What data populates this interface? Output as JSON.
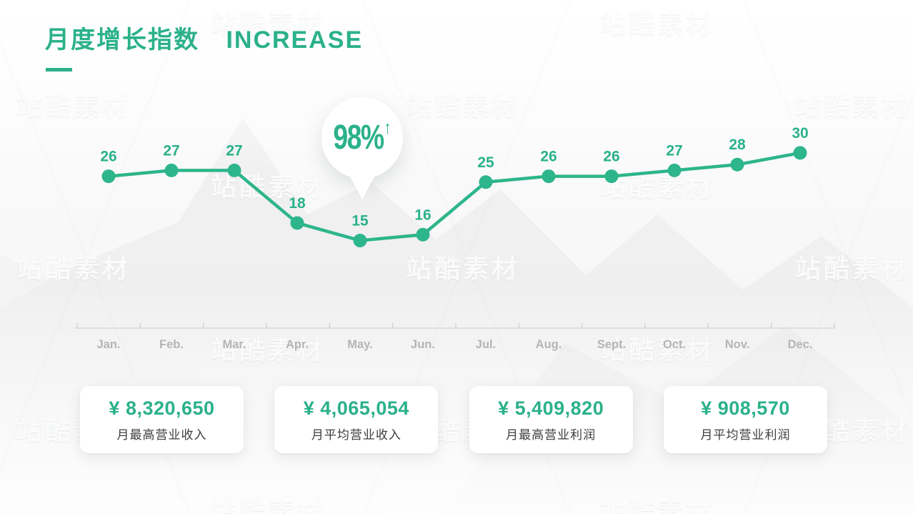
{
  "title": {
    "zh": "月度增长指数",
    "en": "INCREASE"
  },
  "watermark": {
    "text": "站酷素材"
  },
  "colors": {
    "accent": "#2bb18a",
    "chart_line": "#2db58b",
    "month_label": "#b5b5b5",
    "axis_line": "#d9d9d9",
    "card_label": "#3d3d3d"
  },
  "chart_data": {
    "type": "line",
    "title": "月度增长指数 INCREASE",
    "categories": [
      "Jan.",
      "Feb.",
      "Mar.",
      "Apr.",
      "May.",
      "Jun.",
      "Jul.",
      "Aug.",
      "Sept.",
      "Oct.",
      "Nov.",
      "Dec."
    ],
    "values": [
      26,
      27,
      27,
      18,
      15,
      16,
      25,
      26,
      26,
      27,
      28,
      30
    ],
    "ylim": [
      0,
      35
    ],
    "grid": false,
    "legend": false,
    "value_labels": true,
    "xlabel": "",
    "ylabel": "",
    "callout": {
      "text": "98%",
      "arrow": "↑",
      "anchor_category": "May."
    }
  },
  "stats": [
    {
      "value": "¥ 8,320,650",
      "label": "月最高营业收入"
    },
    {
      "value": "¥ 4,065,054",
      "label": "月平均营业收入"
    },
    {
      "value": "¥ 5,409,820",
      "label": "月最高营业利润"
    },
    {
      "value": "¥ 908,570",
      "label": "月平均营业利润"
    }
  ]
}
